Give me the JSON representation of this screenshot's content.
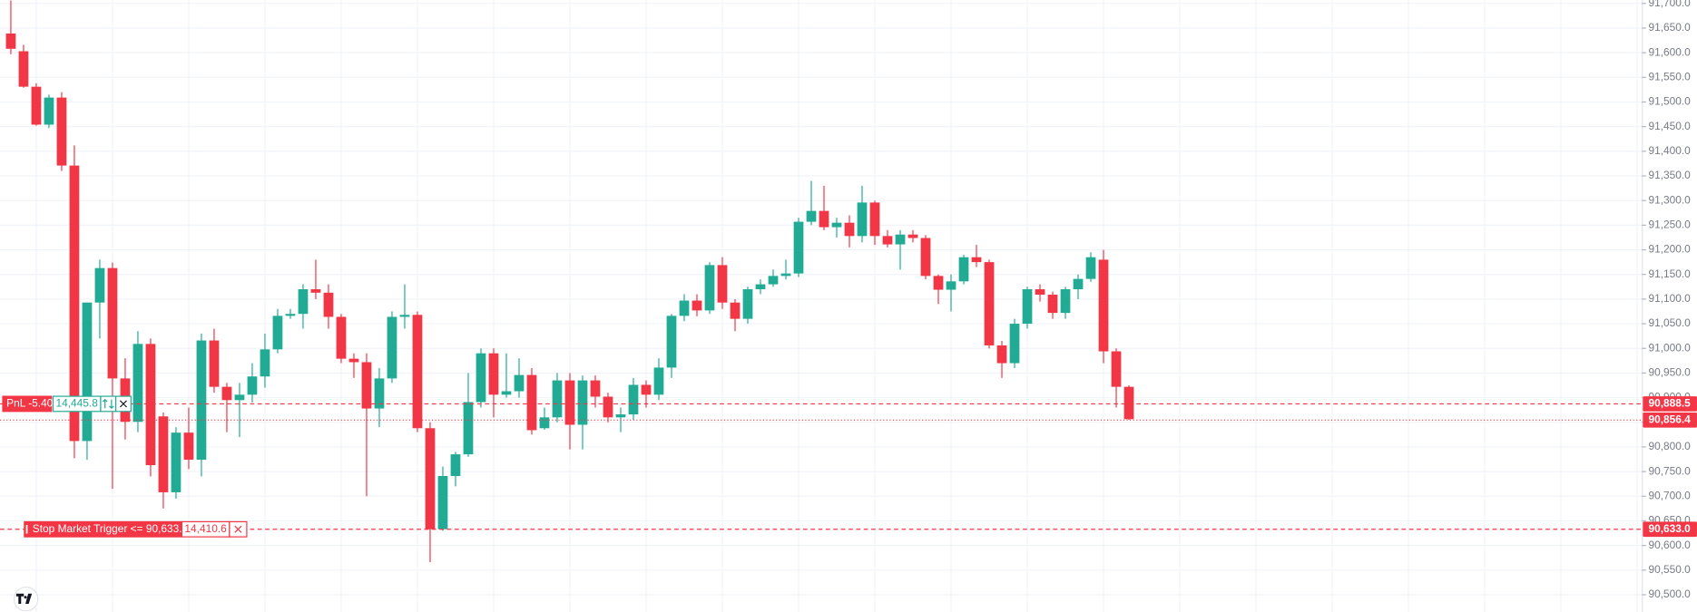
{
  "chart_data": {
    "type": "candlestick",
    "up_color": "#22ab94",
    "down_color": "#f23645",
    "grid": true,
    "ylim": [
      90465,
      91707
    ],
    "yticks": [
      {
        "value": 90500,
        "label": "90,500.0"
      },
      {
        "value": 90550,
        "label": "90,550.0"
      },
      {
        "value": 90600,
        "label": "90,600.0"
      },
      {
        "value": 90650,
        "label": "90,650.0"
      },
      {
        "value": 90700,
        "label": "90,700.0"
      },
      {
        "value": 90750,
        "label": "90,750.0"
      },
      {
        "value": 90800,
        "label": "90,800.0"
      },
      {
        "value": 90850,
        "label": "90,850.0"
      },
      {
        "value": 90900,
        "label": "90,900.0"
      },
      {
        "value": 90950,
        "label": "90,950.0"
      },
      {
        "value": 91000,
        "label": "91,000.0"
      },
      {
        "value": 91050,
        "label": "91,050.0"
      },
      {
        "value": 91100,
        "label": "91,100.0"
      },
      {
        "value": 91150,
        "label": "91,150.0"
      },
      {
        "value": 91200,
        "label": "91,200.0"
      },
      {
        "value": 91250,
        "label": "91,250.0"
      },
      {
        "value": 91300,
        "label": "91,300.0"
      },
      {
        "value": 91350,
        "label": "91,350.0"
      },
      {
        "value": 91400,
        "label": "91,400.0"
      },
      {
        "value": 91450,
        "label": "91,450.0"
      },
      {
        "value": 91500,
        "label": "91,500.0"
      },
      {
        "value": 91550,
        "label": "91,550.0"
      },
      {
        "value": 91600,
        "label": "91,600.0"
      },
      {
        "value": 91650,
        "label": "91,650.0"
      },
      {
        "value": 91700,
        "label": "91,700.0"
      }
    ],
    "open": [
      91639,
      91603,
      91531,
      91454,
      91509,
      91371,
      90812,
      91093,
      91163,
      90939,
      90851,
      91009,
      90862,
      90708,
      90829,
      90774,
      91016,
      90922,
      90895,
      90906,
      90943,
      90998,
      91066,
      91070,
      91120,
      91113,
      91064,
      90979,
      90972,
      90878,
      90939,
      91064,
      91068,
      90838,
      90633,
      90741,
      90785,
      90891,
      90990,
      90906,
      90913,
      90946,
      90838,
      90860,
      90935,
      90845,
      90935,
      90902,
      90860,
      90866,
      90926,
      90906,
      90961,
      91066,
      91097,
      91077,
      91169,
      91093,
      91060,
      91120,
      91130,
      91147,
      91152,
      91257,
      91279,
      91246,
      91255,
      91228,
      91296,
      91228,
      91211,
      91231,
      91224,
      91147,
      91119,
      91136,
      91185,
      91175,
      91006,
      90970,
      91050,
      91120,
      91109,
      91072,
      91120,
      91141,
      91180,
      90994,
      90922
    ],
    "high": [
      91706,
      91616,
      91538,
      91515,
      91520,
      91412,
      91093,
      91180,
      91174,
      90980,
      91035,
      91020,
      90870,
      90840,
      90880,
      91030,
      91040,
      90930,
      90930,
      90970,
      91030,
      91080,
      91080,
      91130,
      91180,
      91130,
      91070,
      90990,
      90990,
      90960,
      91075,
      91130,
      91075,
      90850,
      90760,
      90790,
      90950,
      91000,
      91000,
      90990,
      90980,
      90960,
      90880,
      90950,
      90950,
      90945,
      90945,
      90910,
      90880,
      90940,
      90935,
      90980,
      91070,
      91110,
      91110,
      91175,
      91185,
      91100,
      91125,
      91140,
      91160,
      91180,
      91265,
      91340,
      91330,
      91265,
      91270,
      91330,
      91300,
      91240,
      91240,
      91240,
      91230,
      91150,
      91150,
      91190,
      91210,
      91180,
      91015,
      91060,
      91125,
      91130,
      91115,
      91125,
      91150,
      91195,
      91200,
      91000,
      90925
    ],
    "low": [
      91597,
      91529,
      91452,
      91447,
      91360,
      90777,
      90774,
      91020,
      90715,
      90815,
      90830,
      90740,
      90675,
      90695,
      90755,
      90740,
      90910,
      90830,
      90820,
      90890,
      90920,
      90990,
      91060,
      91040,
      91100,
      91040,
      90970,
      90940,
      90700,
      90840,
      90930,
      91040,
      90830,
      90566,
      90630,
      90720,
      90780,
      90880,
      90860,
      90900,
      90900,
      90825,
      90835,
      90850,
      90795,
      90795,
      90880,
      90850,
      90830,
      90855,
      90880,
      90895,
      90940,
      91055,
      91065,
      91070,
      91080,
      91035,
      91050,
      91110,
      91125,
      91140,
      91145,
      91250,
      91240,
      91225,
      91205,
      91215,
      91210,
      91205,
      91160,
      91215,
      91140,
      91090,
      91075,
      91130,
      91165,
      91000,
      90940,
      90960,
      91040,
      91095,
      91060,
      91060,
      91100,
      91135,
      90970,
      90880,
      90855
    ],
    "close": [
      91608,
      91531,
      91454,
      91509,
      91371,
      90812,
      91093,
      91163,
      90939,
      90851,
      91009,
      90763,
      90708,
      90829,
      90774,
      91016,
      90922,
      90895,
      90906,
      90943,
      90998,
      91066,
      91070,
      91120,
      91113,
      91064,
      90979,
      90972,
      90878,
      90939,
      91064,
      91068,
      90838,
      90633,
      90741,
      90785,
      90891,
      90990,
      90906,
      90913,
      90946,
      90834,
      90860,
      90935,
      90845,
      90935,
      90902,
      90860,
      90866,
      90926,
      90906,
      90961,
      91066,
      91097,
      91077,
      91169,
      91093,
      91060,
      91120,
      91130,
      91147,
      91152,
      91257,
      91279,
      91246,
      91255,
      91228,
      91296,
      91228,
      91211,
      91231,
      91224,
      91147,
      91119,
      91136,
      91185,
      91175,
      91006,
      90970,
      91050,
      91120,
      91109,
      91072,
      91120,
      91141,
      91185,
      90994,
      90922,
      90856.4
    ],
    "price_lines": [
      {
        "value": 90888.5,
        "label": "90,888.5",
        "color": "#f23645",
        "style": "dashed"
      },
      {
        "value": 90856.4,
        "label": "90,856.4",
        "color": "#f23645",
        "style": "dotted"
      },
      {
        "value": 90633.0,
        "label": "90,633.0",
        "color": "#f23645",
        "style": "dashed"
      }
    ],
    "position": {
      "pnl": "PnL -5.40",
      "quantity": "14,445.8"
    },
    "order": {
      "label": "Stop Market Trigger <= 90,633.0",
      "quantity": "14,410.6"
    }
  }
}
